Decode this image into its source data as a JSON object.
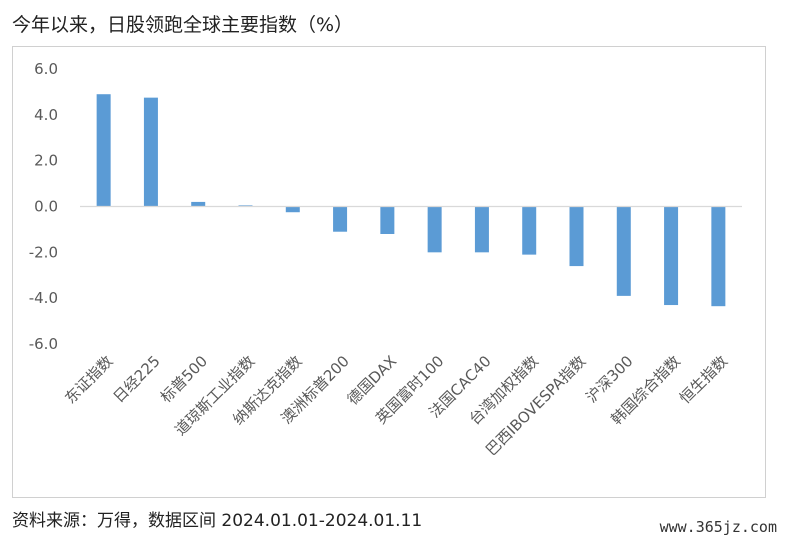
{
  "header": {
    "title": "今年以来，日股领跑全球主要指数（%）"
  },
  "footer": {
    "source": "资料来源：万得，数据区间 2024.01.01-2024.01.11",
    "watermark": "www.365jz.com"
  },
  "colors": {
    "bar": "#5b9bd5",
    "axis": "#d9d9d9",
    "text": "#595959"
  },
  "chart_data": {
    "type": "bar",
    "title": "今年以来，日股领跑全球主要指数（%）",
    "xlabel": "",
    "ylabel": "",
    "categories": [
      "东证指数",
      "日经225",
      "标普500",
      "道琼斯工业指数",
      "纳斯达克指数",
      "澳洲标普200",
      "德国DAX",
      "英国富时100",
      "法国CAC40",
      "台湾加权指数",
      "巴西IBOVESPA指数",
      "沪深300",
      "韩国综合指数",
      "恒生指数"
    ],
    "values": [
      4.9,
      4.75,
      0.2,
      0.05,
      -0.25,
      -1.1,
      -1.2,
      -2.0,
      -2.0,
      -2.1,
      -2.6,
      -3.9,
      -4.3,
      -4.35
    ],
    "ylim": [
      -6.0,
      6.0
    ],
    "yticks": [
      "6.0",
      "4.0",
      "2.0",
      "0.0",
      "-2.0",
      "-4.0",
      "-6.0"
    ],
    "ytick_values": [
      6,
      4,
      2,
      0,
      -2,
      -4,
      -6
    ],
    "grid": false,
    "legend": "none"
  }
}
